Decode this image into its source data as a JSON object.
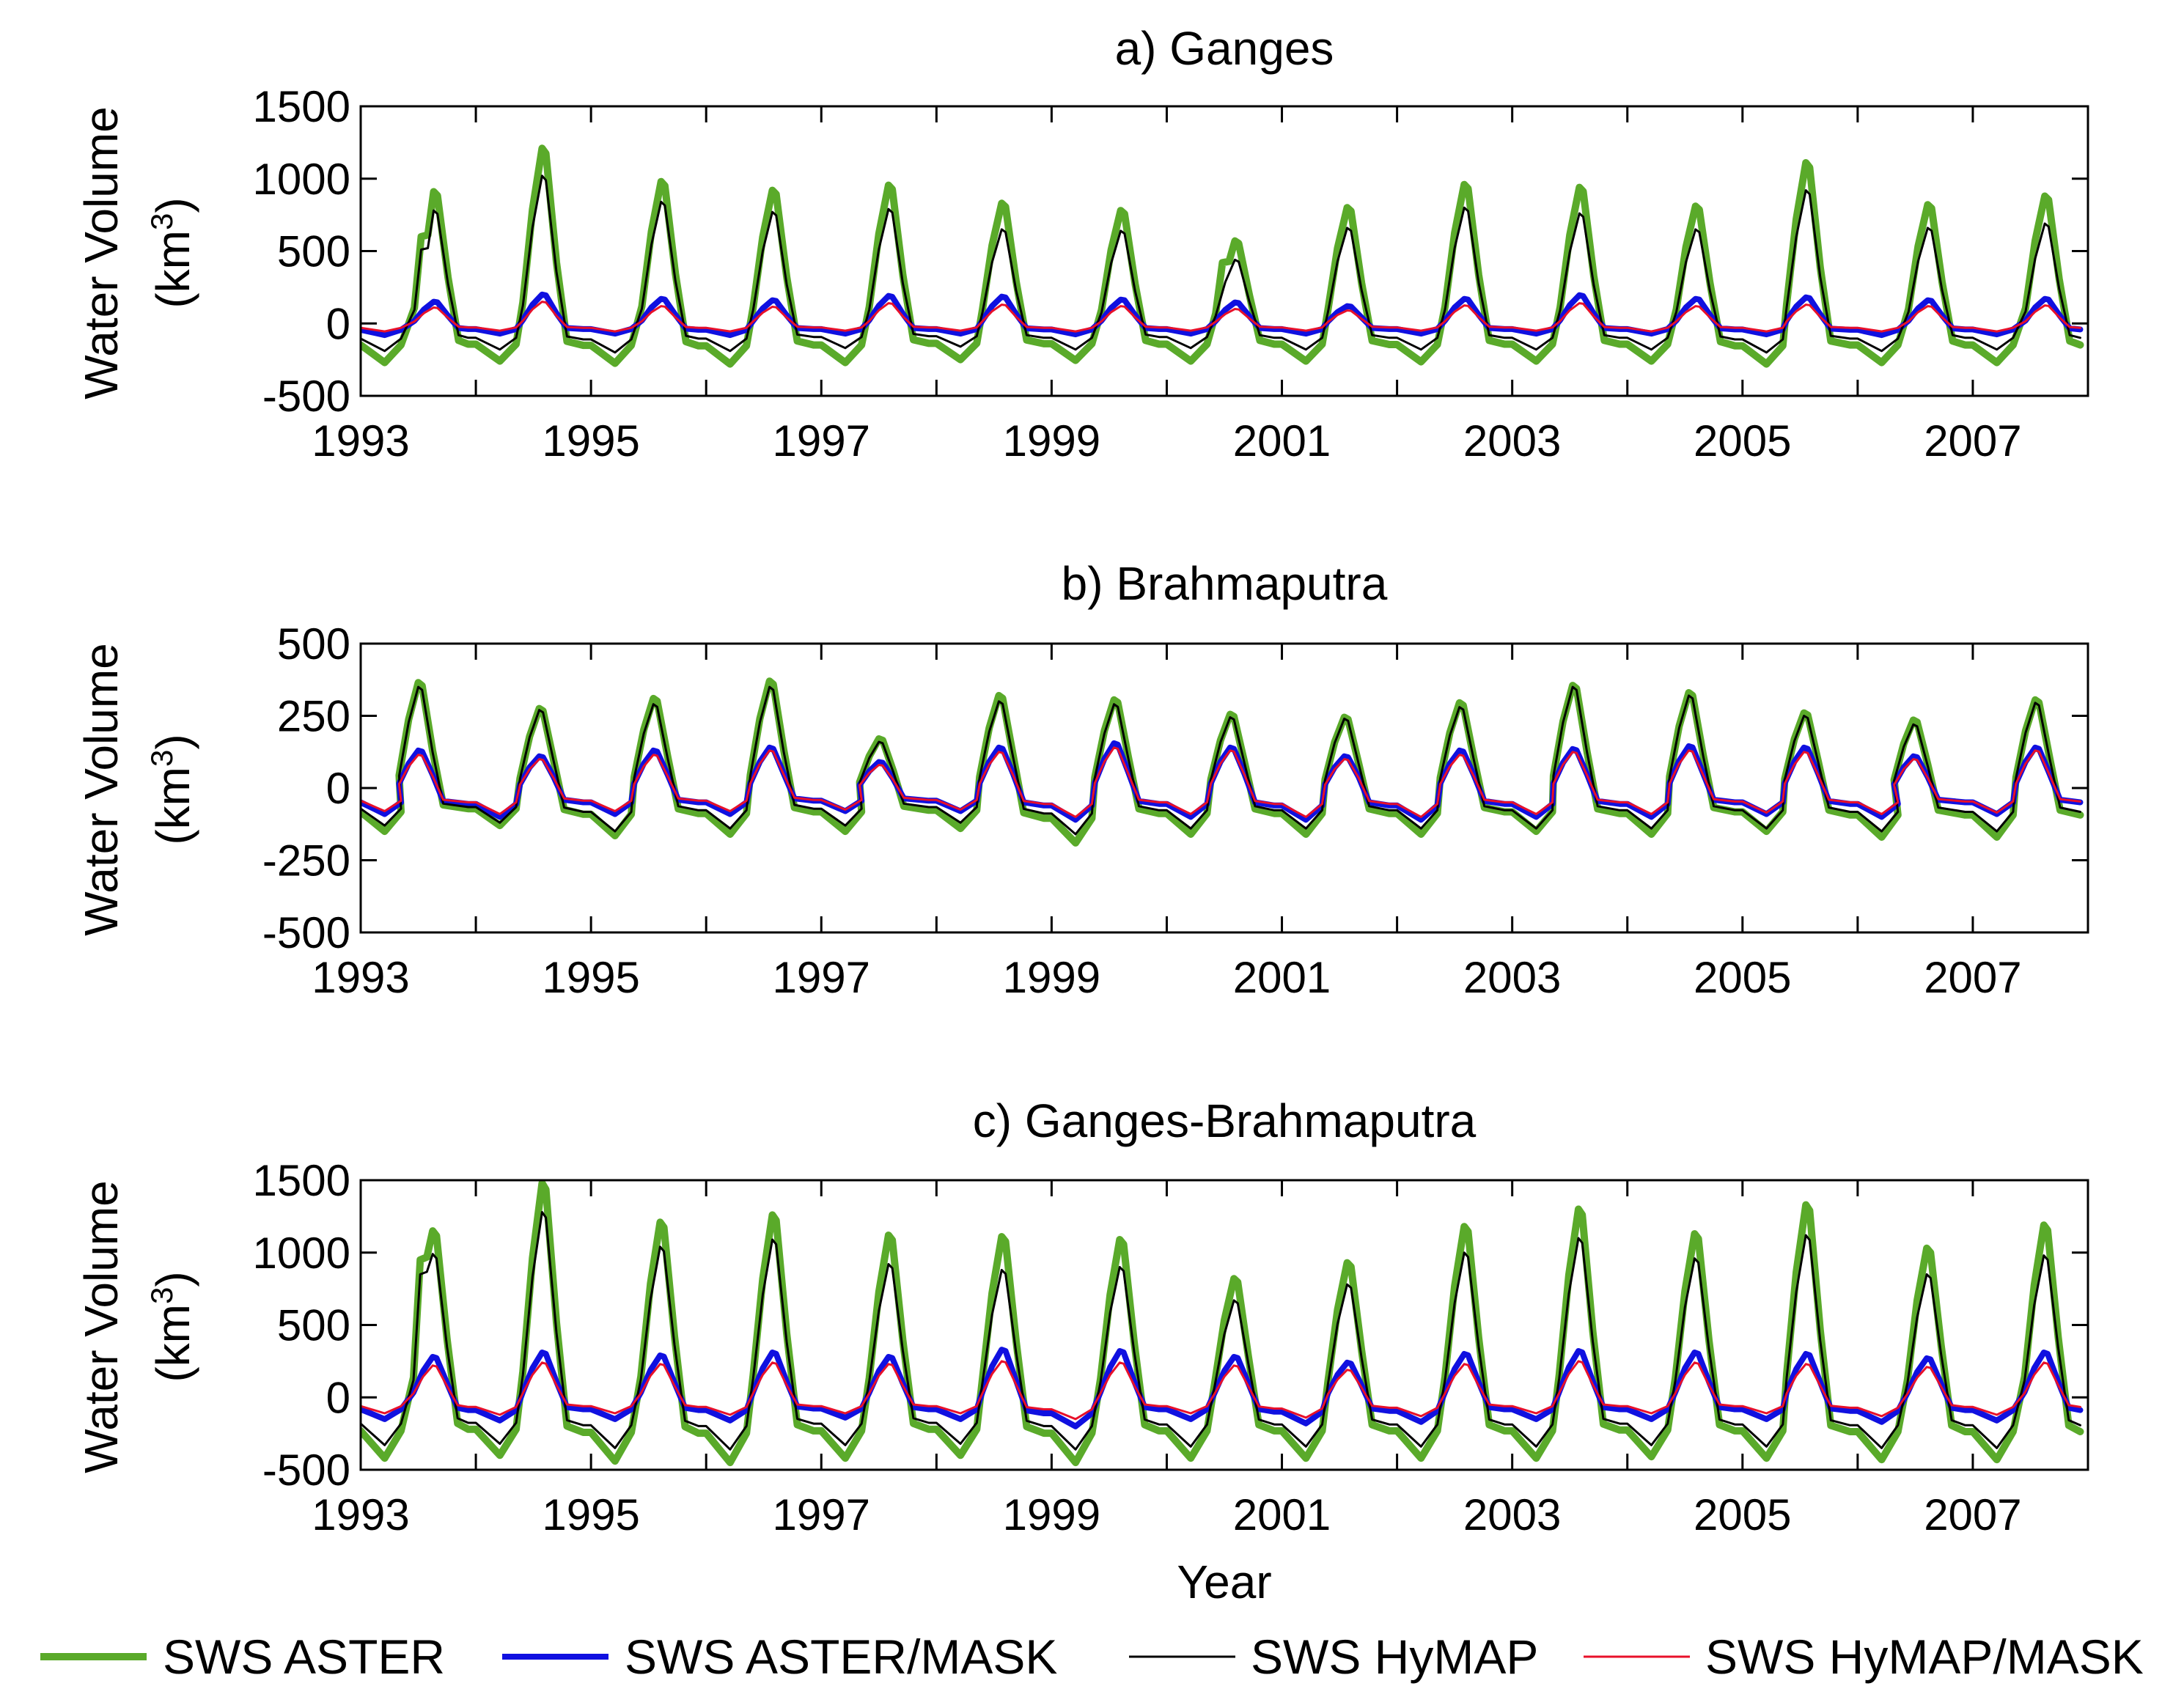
{
  "figure": {
    "xlabel": "Year",
    "x_ticks": [
      "1993",
      "1995",
      "1997",
      "1999",
      "2001",
      "2003",
      "2005",
      "2007"
    ]
  },
  "legend": [
    {
      "label": "SWS ASTER",
      "color": "#5aaa2a",
      "key": "aster"
    },
    {
      "label": "SWS ASTER/MASK",
      "color": "#1010e0",
      "key": "aster_mask"
    },
    {
      "label": "SWS HyMAP",
      "color": "#000000",
      "key": "hymap"
    },
    {
      "label": "SWS HyMAP/MASK",
      "color": "#e8102a",
      "key": "hymap_mask"
    }
  ],
  "chart_data": [
    {
      "type": "line",
      "title": "a) Ganges",
      "ylabel": "Water Volume",
      "yunit": "(km3)",
      "xlim": [
        1993,
        2008
      ],
      "ylim": [
        -500,
        1500
      ],
      "yticks": [
        -500,
        0,
        500,
        1000,
        1500
      ],
      "years": [
        1993,
        1994,
        1995,
        1996,
        1997,
        1998,
        1999,
        2000,
        2001,
        2002,
        2003,
        2004,
        2005,
        2006,
        2007
      ],
      "series": [
        {
          "name": "SWS ASTER",
          "key": "aster",
          "peaks": [
            910,
            1210,
            980,
            920,
            955,
            830,
            780,
            570,
            800,
            960,
            940,
            810,
            1110,
            820,
            880
          ],
          "troughs": [
            -270,
            -260,
            -275,
            -280,
            -270,
            -250,
            -255,
            -260,
            -260,
            -265,
            -260,
            -260,
            -280,
            -270,
            -270
          ],
          "peak_month": [
            7.6,
            6.9,
            7.3,
            6.9,
            7.0,
            6.8,
            7.2,
            7.1,
            6.8,
            7.0,
            7.0,
            7.1,
            6.6,
            7.3,
            7.5
          ],
          "plateau": [
            600,
            0,
            0,
            0,
            0,
            0,
            0,
            420,
            0,
            0,
            0,
            0,
            0,
            0,
            0
          ]
        },
        {
          "name": "SWS ASTER/MASK",
          "key": "aster_mask",
          "peaks": [
            150,
            200,
            170,
            160,
            190,
            185,
            165,
            145,
            120,
            170,
            195,
            170,
            180,
            160,
            170
          ],
          "troughs": [
            -80,
            -70,
            -70,
            -80,
            -70,
            -70,
            -75,
            -70,
            -70,
            -70,
            -70,
            -70,
            -75,
            -80,
            -75
          ],
          "peak_month": [
            7.6,
            6.9,
            7.3,
            6.9,
            7.0,
            6.8,
            7.2,
            7.1,
            6.8,
            7.0,
            7.0,
            7.1,
            6.6,
            7.3,
            7.5
          ],
          "plateau": [
            0,
            0,
            0,
            0,
            0,
            0,
            0,
            0,
            0,
            0,
            0,
            0,
            0,
            0,
            0
          ]
        },
        {
          "name": "SWS HyMAP",
          "key": "hymap",
          "peaks": [
            780,
            1020,
            840,
            770,
            790,
            650,
            640,
            440,
            660,
            800,
            760,
            650,
            920,
            660,
            690
          ],
          "troughs": [
            -190,
            -180,
            -200,
            -190,
            -170,
            -160,
            -180,
            -170,
            -180,
            -180,
            -180,
            -180,
            -200,
            -190,
            -180
          ],
          "peak_month": [
            7.6,
            6.9,
            7.3,
            6.9,
            7.0,
            6.8,
            7.2,
            7.1,
            6.8,
            7.0,
            7.0,
            7.1,
            6.6,
            7.3,
            7.5
          ],
          "plateau": [
            510,
            0,
            0,
            0,
            0,
            0,
            0,
            0,
            0,
            0,
            0,
            0,
            0,
            0,
            0
          ]
        },
        {
          "name": "SWS HyMAP/MASK",
          "key": "hymap_mask",
          "peaks": [
            110,
            150,
            120,
            115,
            140,
            130,
            120,
            100,
            90,
            125,
            140,
            120,
            130,
            120,
            125
          ],
          "troughs": [
            -55,
            -50,
            -55,
            -55,
            -50,
            -50,
            -55,
            -50,
            -50,
            -50,
            -50,
            -55,
            -55,
            -55,
            -55
          ],
          "peak_month": [
            7.6,
            6.9,
            7.3,
            6.9,
            7.0,
            6.8,
            7.2,
            7.1,
            6.8,
            7.0,
            7.0,
            7.1,
            6.6,
            7.3,
            7.5
          ],
          "plateau": [
            0,
            0,
            0,
            0,
            0,
            0,
            0,
            0,
            0,
            0,
            0,
            0,
            0,
            0,
            0
          ]
        }
      ]
    },
    {
      "type": "line",
      "title": "b) Brahmaputra",
      "ylabel": "Water Volume",
      "yunit": "(km3)",
      "xlim": [
        1993,
        2008
      ],
      "ylim": [
        -500,
        500
      ],
      "yticks": [
        -500,
        -250,
        0,
        250,
        500
      ],
      "years": [
        1993,
        1994,
        1995,
        1996,
        1997,
        1998,
        1999,
        2000,
        2001,
        2002,
        2003,
        2004,
        2005,
        2006,
        2007
      ],
      "series": [
        {
          "name": "SWS ASTER",
          "key": "aster",
          "peaks": [
            365,
            275,
            310,
            370,
            170,
            320,
            305,
            255,
            245,
            295,
            355,
            330,
            260,
            235,
            305
          ],
          "troughs": [
            -150,
            -130,
            -165,
            -160,
            -150,
            -140,
            -190,
            -160,
            -160,
            -160,
            -150,
            -160,
            -150,
            -170,
            -170
          ],
          "peak_month": [
            6.0,
            6.6,
            6.5,
            6.6,
            6.0,
            6.5,
            6.5,
            6.6,
            6.5,
            6.5,
            6.3,
            6.4,
            6.4,
            5.8,
            6.5
          ],
          "plateau": [
            0,
            0,
            0,
            0,
            0,
            0,
            0,
            0,
            0,
            0,
            0,
            0,
            0,
            0,
            0
          ]
        },
        {
          "name": "SWS ASTER/MASK",
          "key": "aster_mask",
          "peaks": [
            130,
            110,
            130,
            140,
            90,
            140,
            155,
            140,
            110,
            130,
            135,
            145,
            140,
            110,
            140
          ],
          "troughs": [
            -90,
            -100,
            -90,
            -90,
            -80,
            -80,
            -110,
            -100,
            -110,
            -110,
            -100,
            -100,
            -90,
            -100,
            -90
          ],
          "peak_month": [
            6.0,
            6.6,
            6.5,
            6.6,
            6.0,
            6.5,
            6.5,
            6.6,
            6.5,
            6.5,
            6.3,
            6.4,
            6.4,
            5.8,
            6.5
          ],
          "plateau": [
            0,
            0,
            0,
            0,
            0,
            0,
            0,
            0,
            0,
            0,
            0,
            0,
            0,
            0,
            0
          ]
        },
        {
          "name": "SWS HyMAP",
          "key": "hymap",
          "peaks": [
            350,
            270,
            290,
            350,
            160,
            300,
            290,
            245,
            240,
            280,
            350,
            320,
            250,
            220,
            295
          ],
          "troughs": [
            -130,
            -120,
            -150,
            -140,
            -130,
            -120,
            -160,
            -140,
            -140,
            -140,
            -140,
            -140,
            -140,
            -150,
            -150
          ],
          "peak_month": [
            6.0,
            6.6,
            6.5,
            6.6,
            6.0,
            6.5,
            6.5,
            6.6,
            6.5,
            6.5,
            6.3,
            6.4,
            6.4,
            5.8,
            6.5
          ],
          "plateau": [
            0,
            0,
            0,
            0,
            0,
            0,
            0,
            0,
            0,
            0,
            0,
            0,
            0,
            0,
            0
          ]
        },
        {
          "name": "SWS HyMAP/MASK",
          "key": "hymap_mask",
          "peaks": [
            115,
            100,
            115,
            130,
            80,
            125,
            140,
            130,
            100,
            115,
            125,
            130,
            125,
            100,
            130
          ],
          "troughs": [
            -80,
            -90,
            -80,
            -80,
            -75,
            -75,
            -100,
            -90,
            -100,
            -100,
            -90,
            -90,
            -85,
            -90,
            -85
          ],
          "peak_month": [
            6.0,
            6.6,
            6.5,
            6.6,
            6.0,
            6.5,
            6.5,
            6.6,
            6.5,
            6.5,
            6.3,
            6.4,
            6.4,
            5.8,
            6.5
          ],
          "plateau": [
            0,
            0,
            0,
            0,
            0,
            0,
            0,
            0,
            0,
            0,
            0,
            0,
            0,
            0,
            0
          ]
        }
      ]
    },
    {
      "type": "line",
      "title": "c) Ganges-Brahmaputra",
      "ylabel": "Water Volume",
      "yunit": "(km3)",
      "xlim": [
        1993,
        2008
      ],
      "ylim": [
        -500,
        1500
      ],
      "yticks": [
        -500,
        0,
        500,
        1000,
        1500
      ],
      "years": [
        1993,
        1994,
        1995,
        1996,
        1997,
        1998,
        1999,
        2000,
        2001,
        2002,
        2003,
        2004,
        2005,
        2006,
        2007
      ],
      "series": [
        {
          "name": "SWS ASTER",
          "key": "aster",
          "peaks": [
            1150,
            1480,
            1210,
            1260,
            1120,
            1110,
            1090,
            820,
            930,
            1180,
            1300,
            1130,
            1330,
            1030,
            1190
          ],
          "troughs": [
            -420,
            -400,
            -440,
            -450,
            -420,
            -400,
            -450,
            -420,
            -420,
            -420,
            -420,
            -410,
            -420,
            -430,
            -430
          ],
          "peak_month": [
            7.5,
            6.9,
            7.2,
            6.9,
            7.0,
            6.8,
            7.1,
            7.0,
            6.8,
            7.0,
            6.9,
            7.0,
            6.6,
            7.2,
            7.4
          ],
          "plateau": [
            950,
            0,
            0,
            0,
            0,
            0,
            0,
            0,
            0,
            0,
            0,
            0,
            0,
            0,
            0
          ]
        },
        {
          "name": "SWS ASTER/MASK",
          "key": "aster_mask",
          "peaks": [
            280,
            310,
            290,
            310,
            280,
            330,
            320,
            280,
            240,
            300,
            320,
            310,
            300,
            270,
            310
          ],
          "troughs": [
            -150,
            -160,
            -150,
            -160,
            -140,
            -150,
            -200,
            -150,
            -180,
            -170,
            -150,
            -150,
            -150,
            -170,
            -160
          ],
          "peak_month": [
            7.5,
            6.9,
            7.2,
            6.9,
            7.0,
            6.8,
            7.1,
            7.0,
            6.8,
            7.0,
            6.9,
            7.0,
            6.6,
            7.2,
            7.4
          ],
          "plateau": [
            0,
            0,
            0,
            0,
            0,
            0,
            0,
            0,
            0,
            0,
            0,
            0,
            0,
            0,
            0
          ]
        },
        {
          "name": "SWS HyMAP",
          "key": "hymap",
          "peaks": [
            990,
            1280,
            1040,
            1090,
            920,
            880,
            900,
            670,
            780,
            1000,
            1100,
            960,
            1120,
            850,
            980
          ],
          "troughs": [
            -330,
            -320,
            -350,
            -360,
            -330,
            -320,
            -360,
            -340,
            -340,
            -340,
            -340,
            -330,
            -340,
            -350,
            -350
          ],
          "peak_month": [
            7.5,
            6.9,
            7.2,
            6.9,
            7.0,
            6.8,
            7.1,
            7.0,
            6.8,
            7.0,
            6.9,
            7.0,
            6.6,
            7.2,
            7.4
          ],
          "plateau": [
            850,
            0,
            0,
            0,
            0,
            0,
            0,
            0,
            0,
            0,
            0,
            0,
            0,
            0,
            0
          ]
        },
        {
          "name": "SWS HyMAP/MASK",
          "key": "hymap_mask",
          "peaks": [
            220,
            240,
            230,
            240,
            230,
            250,
            240,
            220,
            190,
            230,
            250,
            240,
            230,
            210,
            240
          ],
          "troughs": [
            -110,
            -120,
            -110,
            -120,
            -110,
            -110,
            -150,
            -110,
            -140,
            -130,
            -110,
            -110,
            -110,
            -130,
            -120
          ],
          "peak_month": [
            7.5,
            6.9,
            7.2,
            6.9,
            7.0,
            6.8,
            7.1,
            7.0,
            6.8,
            7.0,
            6.9,
            7.0,
            6.6,
            7.2,
            7.4
          ],
          "plateau": [
            0,
            0,
            0,
            0,
            0,
            0,
            0,
            0,
            0,
            0,
            0,
            0,
            0,
            0,
            0
          ]
        }
      ]
    }
  ]
}
